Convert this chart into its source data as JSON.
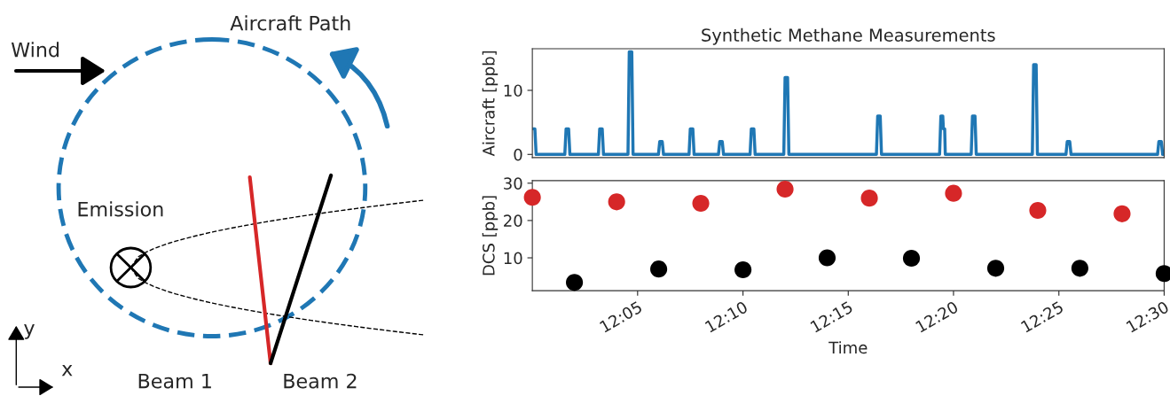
{
  "chart_data": [
    {
      "type": "other",
      "annotations": [
        "Wind",
        "Aircraft Path",
        "Emission",
        "Beam 1",
        "Beam 2",
        "y",
        "x"
      ]
    },
    {
      "type": "line",
      "title": "Synthetic Methane Measurements",
      "ylabel": "Aircraft [ppb]",
      "xlim": [
        12.0,
        12.5
      ],
      "ylim": [
        -0.5,
        16.5
      ],
      "yticks": [
        0,
        10
      ],
      "tick_labels": "y",
      "grid": false,
      "marker": "none",
      "line_style": "solid",
      "series": [
        {
          "color": "#1f77b4",
          "x": [
            12.0,
            12.002,
            12.003,
            12.0257,
            12.0267,
            12.0287,
            12.0297,
            12.0523,
            12.0533,
            12.0553,
            12.0563,
            12.0757,
            12.0767,
            12.0787,
            12.0797,
            12.0998,
            12.1008,
            12.1028,
            12.1038,
            12.124,
            12.125,
            12.127,
            12.128,
            12.1473,
            12.1483,
            12.1503,
            12.1513,
            12.1723,
            12.1733,
            12.1753,
            12.1763,
            12.199,
            12.2,
            12.202,
            12.203,
            12.2723,
            12.2733,
            12.2753,
            12.2763,
            12.3223,
            12.3233,
            12.3248,
            12.3253,
            12.3263,
            12.3268,
            12.3473,
            12.3483,
            12.3503,
            12.3513,
            12.3957,
            12.3967,
            12.3987,
            12.3997,
            12.4223,
            12.4233,
            12.4253,
            12.4263,
            12.4948,
            12.4958,
            12.4978,
            12.4988,
            12.5
          ],
          "values": [
            4,
            4,
            0,
            0,
            4,
            4,
            0,
            0,
            4,
            4,
            0,
            0,
            16,
            16,
            0,
            0,
            2,
            2,
            0,
            0,
            4,
            4,
            0,
            0,
            2,
            2,
            0,
            0,
            4,
            4,
            0,
            0,
            12,
            12,
            0,
            0,
            6,
            6,
            0,
            0,
            6,
            6,
            4,
            4,
            0,
            0,
            6,
            6,
            0,
            0,
            14,
            14,
            0,
            0,
            2,
            2,
            0,
            0,
            2,
            2,
            0,
            0
          ]
        }
      ]
    },
    {
      "type": "scatter",
      "xlabel": "Time",
      "ylabel": "DCS [ppb]",
      "xlim": [
        12.0,
        12.5
      ],
      "ylim": [
        1.2,
        30.7
      ],
      "yticks": [
        10,
        20,
        30
      ],
      "xticks": [
        {
          "value": 12.0833,
          "label": "12:05"
        },
        {
          "value": 12.1667,
          "label": "12:10"
        },
        {
          "value": 12.25,
          "label": "12:15"
        },
        {
          "value": 12.3333,
          "label": "12:20"
        },
        {
          "value": 12.4167,
          "label": "12:25"
        },
        {
          "value": 12.5,
          "label": "12:30"
        }
      ],
      "grid": false,
      "marker": "circle",
      "series": [
        {
          "color": "#d62728",
          "x": [
            12.0,
            12.0667,
            12.1333,
            12.2,
            12.2667,
            12.3333,
            12.4,
            12.4667
          ],
          "values": [
            26.2,
            25,
            24.6,
            28.4,
            26,
            27.3,
            22.7,
            21.8
          ]
        },
        {
          "color": "#000000",
          "x": [
            12.0333,
            12.1,
            12.1667,
            12.2333,
            12.3,
            12.3667,
            12.4333,
            12.5
          ],
          "values": [
            3.4,
            7,
            6.8,
            10,
            9.9,
            7.2,
            7.2,
            5.8
          ]
        }
      ]
    }
  ]
}
